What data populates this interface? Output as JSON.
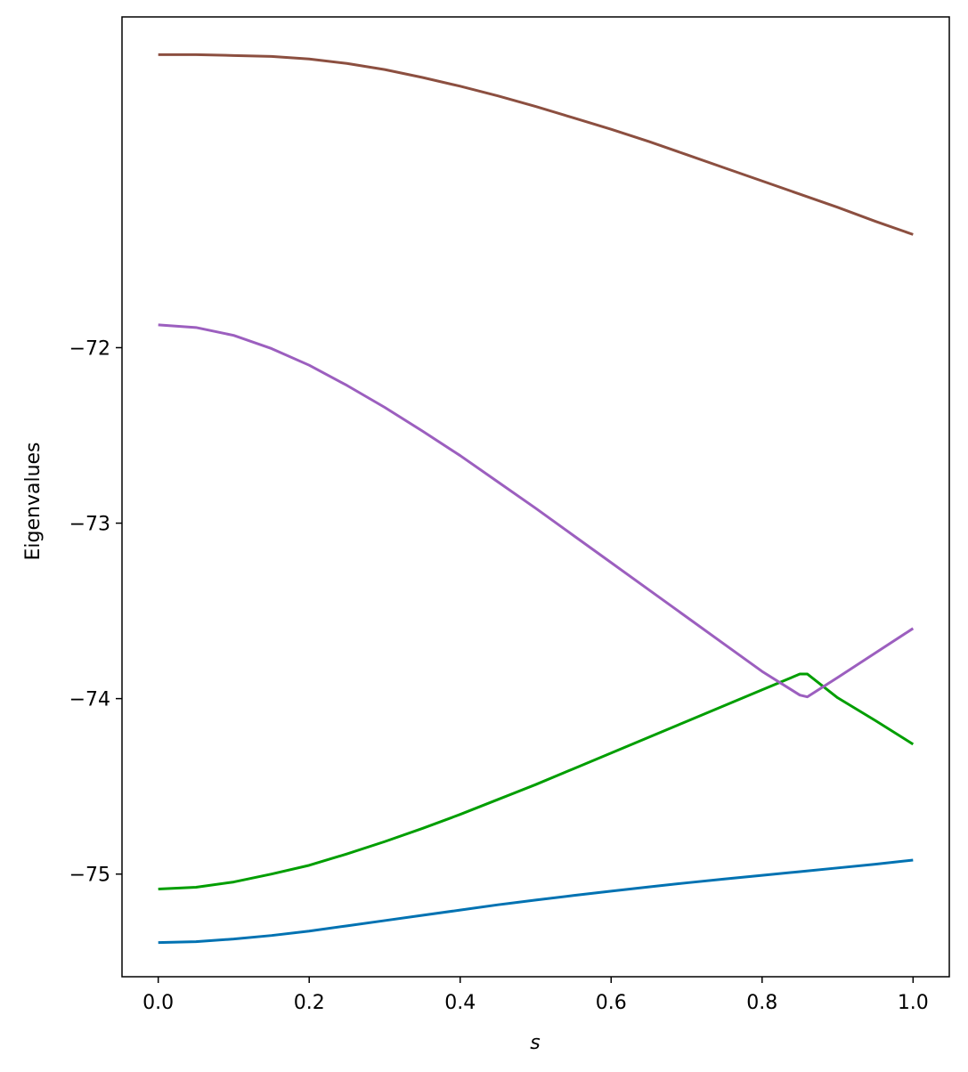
{
  "chart_data": {
    "type": "line",
    "title": "",
    "xlabel": "s",
    "ylabel": "Eigenvalues",
    "xlim": [
      -0.048,
      1.048
    ],
    "ylim": [
      -75.585,
      -70.115
    ],
    "xticks": [
      0.0,
      0.2,
      0.4,
      0.6,
      0.8,
      1.0
    ],
    "xtick_labels": [
      "0.0",
      "0.2",
      "0.4",
      "0.6",
      "0.8",
      "1.0"
    ],
    "yticks": [
      -72,
      -73,
      -74,
      -75
    ],
    "ytick_labels": [
      "−72",
      "−73",
      "−74",
      "−75"
    ],
    "grid": false,
    "legend": "none",
    "series": [
      {
        "color": "#0072B2",
        "x": [
          0,
          0.05,
          0.1,
          0.15,
          0.2,
          0.25,
          0.3,
          0.35,
          0.4,
          0.45,
          0.5,
          0.55,
          0.6,
          0.65,
          0.7,
          0.75,
          0.8,
          0.85,
          0.9,
          0.95,
          1.0
        ],
        "y": [
          -75.39,
          -75.385,
          -75.37,
          -75.35,
          -75.325,
          -75.295,
          -75.265,
          -75.235,
          -75.205,
          -75.175,
          -75.148,
          -75.122,
          -75.097,
          -75.073,
          -75.05,
          -75.028,
          -75.007,
          -74.986,
          -74.965,
          -74.944,
          -74.92
        ]
      },
      {
        "color": "#009E00",
        "x": [
          0,
          0.05,
          0.1,
          0.15,
          0.2,
          0.25,
          0.3,
          0.35,
          0.4,
          0.45,
          0.5,
          0.55,
          0.6,
          0.65,
          0.7,
          0.75,
          0.8,
          0.85,
          0.86,
          0.9,
          0.95,
          1.0
        ],
        "y": [
          -75.085,
          -75.075,
          -75.045,
          -75.0,
          -74.95,
          -74.885,
          -74.815,
          -74.74,
          -74.66,
          -74.575,
          -74.49,
          -74.4,
          -74.31,
          -74.22,
          -74.13,
          -74.04,
          -73.95,
          -73.86,
          -73.86,
          -73.995,
          -74.125,
          -74.26
        ]
      },
      {
        "color": "#9C5FBF",
        "x": [
          0,
          0.05,
          0.1,
          0.15,
          0.2,
          0.25,
          0.3,
          0.35,
          0.4,
          0.45,
          0.5,
          0.55,
          0.6,
          0.65,
          0.7,
          0.75,
          0.8,
          0.85,
          0.86,
          0.9,
          0.95,
          1.0
        ],
        "y": [
          -71.87,
          -71.885,
          -71.93,
          -72.005,
          -72.1,
          -72.215,
          -72.34,
          -72.475,
          -72.615,
          -72.765,
          -72.915,
          -73.07,
          -73.225,
          -73.38,
          -73.535,
          -73.69,
          -73.845,
          -73.98,
          -73.99,
          -73.88,
          -73.74,
          -73.6
        ]
      },
      {
        "color": "#8C4F40",
        "x": [
          0,
          0.05,
          0.1,
          0.15,
          0.2,
          0.25,
          0.3,
          0.35,
          0.4,
          0.45,
          0.5,
          0.55,
          0.6,
          0.65,
          0.7,
          0.75,
          0.8,
          0.85,
          0.9,
          0.95,
          1.0
        ],
        "y": [
          -70.33,
          -70.33,
          -70.335,
          -70.34,
          -70.355,
          -70.38,
          -70.415,
          -70.46,
          -70.51,
          -70.565,
          -70.625,
          -70.69,
          -70.755,
          -70.825,
          -70.9,
          -70.975,
          -71.05,
          -71.125,
          -71.2,
          -71.28,
          -71.355
        ]
      }
    ]
  }
}
